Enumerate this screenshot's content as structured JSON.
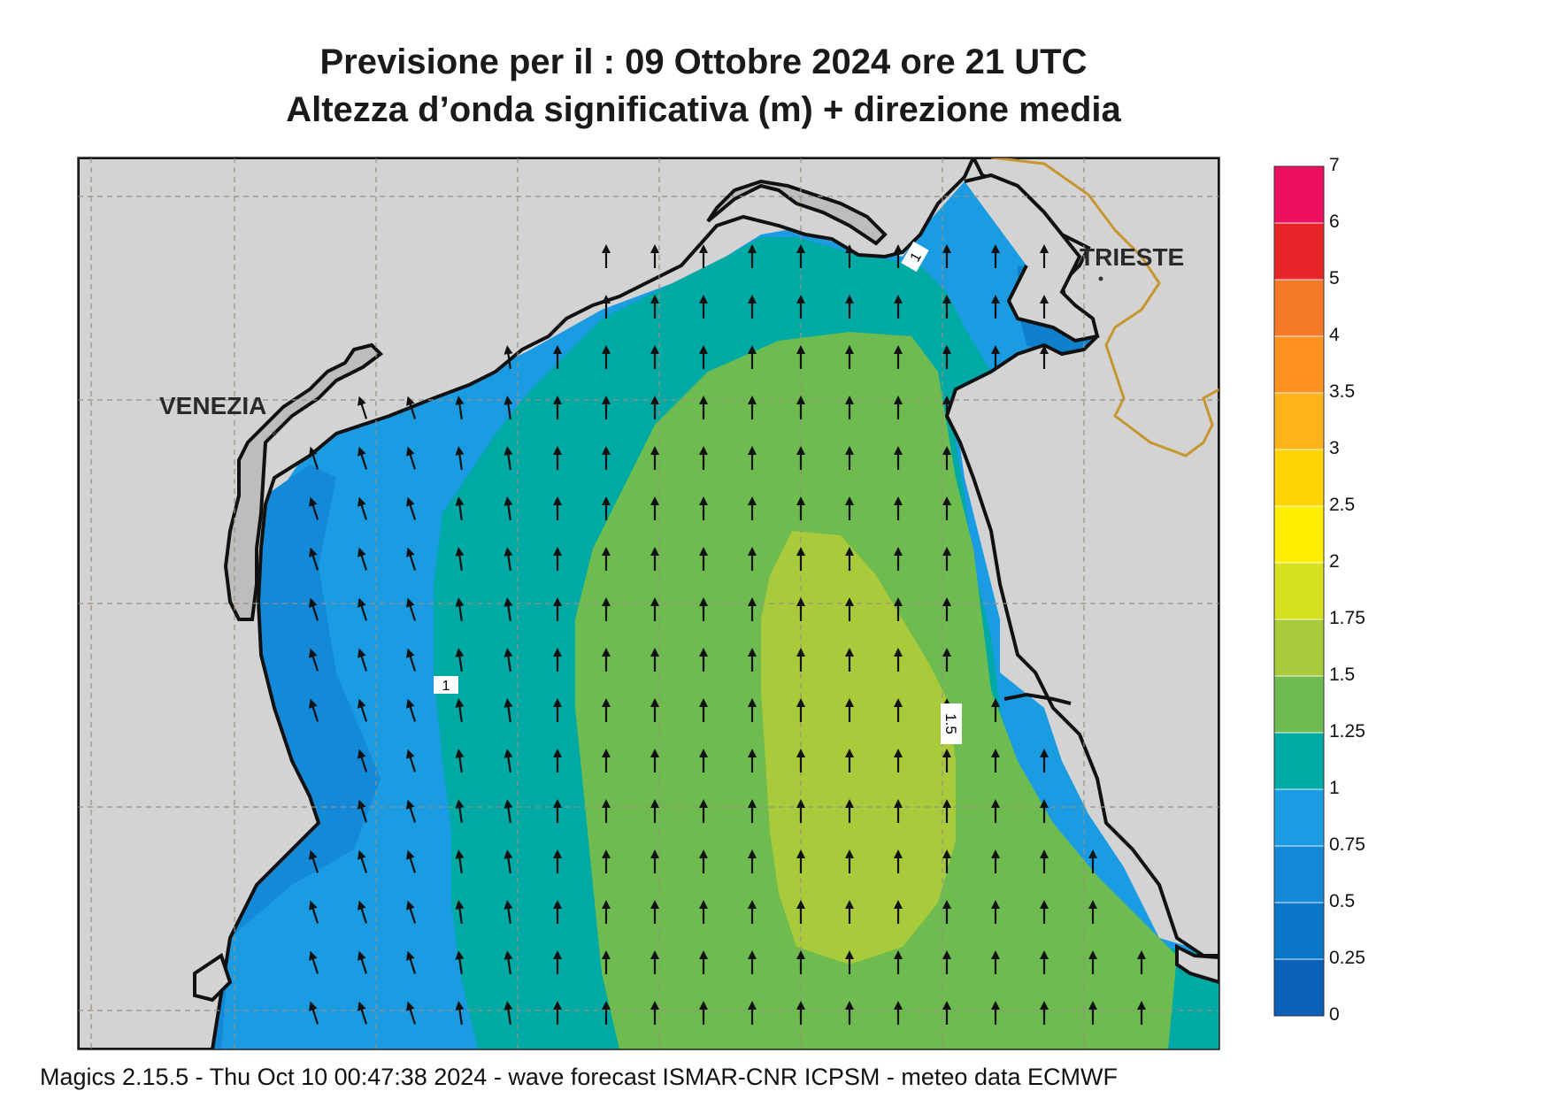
{
  "header": {
    "title_line1": "Previsione per il  :  09  Ottobre  2024   ore 21 UTC",
    "title_line2": "Altezza d’onda significativa (m) + direzione media"
  },
  "map": {
    "region": "Northern Adriatic Sea",
    "places": [
      {
        "name": "VENEZIA"
      },
      {
        "name": "TRIESTE"
      }
    ],
    "contour_labels": [
      "1",
      "1",
      "1.5"
    ],
    "arrow_direction": "north",
    "grid": true
  },
  "legend": {
    "unit": "m",
    "levels": [
      "0",
      "0.25",
      "0.5",
      "0.75",
      "1",
      "1.25",
      "1.5",
      "1.75",
      "2",
      "2.5",
      "3",
      "3.5",
      "4",
      "5",
      "6",
      "7"
    ],
    "colors": [
      "#0a62b8",
      "#0a76c8",
      "#1489d8",
      "#1a9be2",
      "#00aaa4",
      "#6ebc50",
      "#a9ca3a",
      "#d6e020",
      "#ffee00",
      "#ffd400",
      "#ffb21a",
      "#ff9120",
      "#f57a28",
      "#e8262a",
      "#ee1060"
    ]
  },
  "colors": {
    "land": "#d3d3d3",
    "coast_fill": "#bdbdbd",
    "border": "#c8962e",
    "grid": "#9a8f80"
  },
  "footer": {
    "text": "Magics 2.15.5 - Thu Oct 10 00:47:38 2024 - wave forecast  ISMAR-CNR  ICPSM - meteo data   ECMWF"
  }
}
